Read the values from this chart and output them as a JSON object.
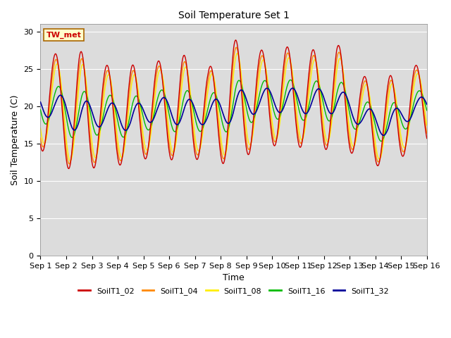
{
  "title": "Soil Temperature Set 1",
  "xlabel": "Time",
  "ylabel": "Soil Temperature (C)",
  "ylim": [
    0,
    31
  ],
  "background_color": "#dcdcdc",
  "fig_facecolor": "#ffffff",
  "annotation": "TW_met",
  "xtick_labels": [
    "Sep 1",
    "Sep 2",
    "Sep 3",
    "Sep 4",
    "Sep 5",
    "Sep 6",
    "Sep 7",
    "Sep 8",
    "Sep 9",
    "Sep 10",
    "Sep 11",
    "Sep 12",
    "Sep 13",
    "Sep 14",
    "Sep 15",
    "Sep 16"
  ],
  "ytick_values": [
    0,
    5,
    10,
    15,
    20,
    25,
    30
  ],
  "series": {
    "SoilT1_02": {
      "color": "#cc0000",
      "lw": 1.0
    },
    "SoilT1_04": {
      "color": "#ff8800",
      "lw": 1.0
    },
    "SoilT1_08": {
      "color": "#ffee00",
      "lw": 1.0
    },
    "SoilT1_16": {
      "color": "#00bb00",
      "lw": 1.0
    },
    "SoilT1_32": {
      "color": "#000099",
      "lw": 1.2
    }
  },
  "legend_order": [
    "SoilT1_02",
    "SoilT1_04",
    "SoilT1_08",
    "SoilT1_16",
    "SoilT1_32"
  ],
  "title_fontsize": 10,
  "label_fontsize": 9,
  "tick_fontsize": 8,
  "legend_fontsize": 8
}
